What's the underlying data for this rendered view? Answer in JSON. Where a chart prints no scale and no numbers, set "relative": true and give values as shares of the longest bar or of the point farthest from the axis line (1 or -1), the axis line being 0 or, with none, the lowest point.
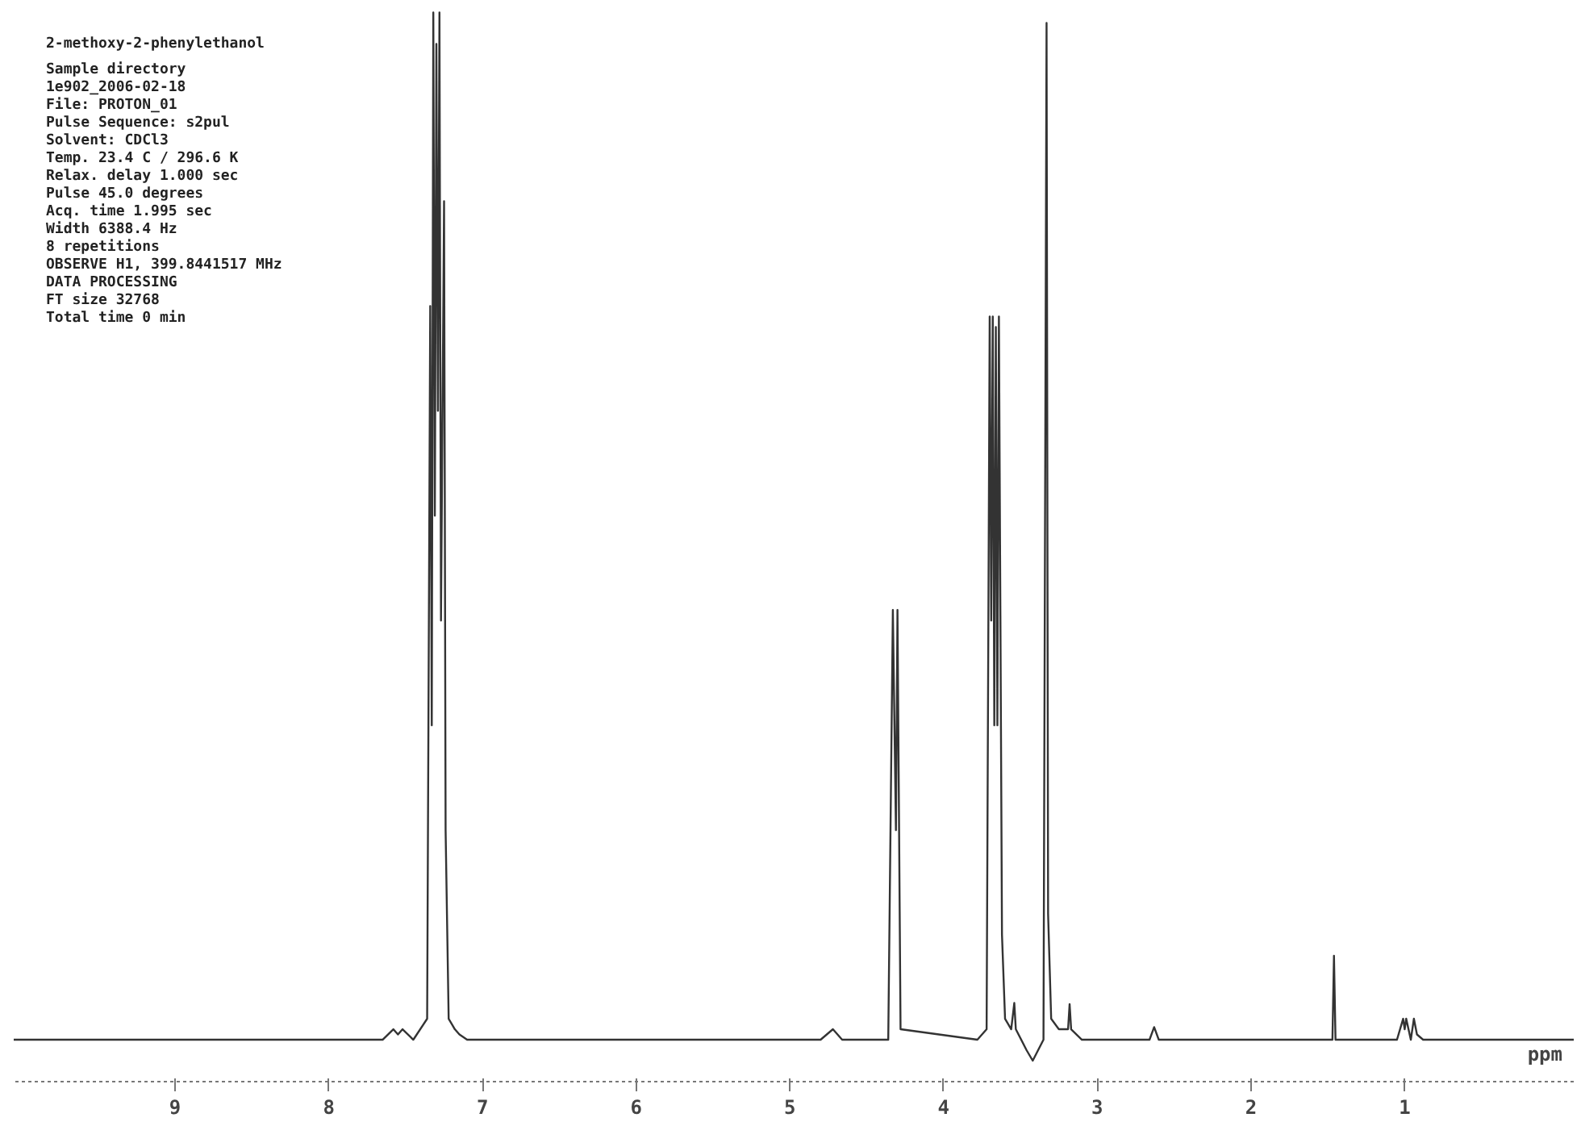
{
  "chart_data": {
    "type": "line",
    "relative": true,
    "title": "2-methoxy-2-phenylethanol",
    "xlabel": "ppm",
    "annotations": [
      "Sample directory",
      "1e902_2006-02-18",
      "File: PROTON_01",
      "Pulse Sequence: s2pul",
      "Solvent: CDCl3",
      "Temp. 23.4 C / 296.6 K",
      "Relax. delay 1.000 sec",
      "Pulse 45.0 degrees",
      "Acq. time 1.995 sec",
      "Width 6388.4 Hz",
      "8 repetitions",
      "OBSERVE  H1, 399.8441517 MHz",
      "DATA PROCESSING",
      "FT size 32768",
      "Total time 0 min"
    ],
    "xlim": [
      10.05,
      -0.1
    ],
    "xticks": [
      9,
      8,
      7,
      6,
      5,
      4,
      3,
      2,
      1
    ],
    "grid": false,
    "marker": "none",
    "line_style": "solid",
    "series": [
      {
        "color": "#333333",
        "x": [
          10.05,
          7.65,
          7.58,
          7.55,
          7.52,
          7.45,
          7.36,
          7.34,
          7.33,
          7.32,
          7.31,
          7.3,
          7.29,
          7.28,
          7.27,
          7.25,
          7.24,
          7.22,
          7.18,
          7.15,
          7.1,
          4.8,
          4.72,
          4.66,
          4.36,
          4.33,
          4.31,
          4.3,
          4.28,
          3.78,
          3.72,
          3.7,
          3.69,
          3.68,
          3.67,
          3.66,
          3.65,
          3.64,
          3.62,
          3.6,
          3.56,
          3.54,
          3.53,
          3.46,
          3.42,
          3.35,
          3.33,
          3.32,
          3.3,
          3.25,
          3.19,
          3.18,
          3.17,
          3.1,
          2.66,
          2.63,
          2.6,
          1.47,
          1.46,
          1.45,
          1.05,
          1.01,
          1.0,
          0.99,
          0.96,
          0.94,
          0.92,
          0.88,
          -0.1
        ],
        "values": [
          0.02,
          0.02,
          0.03,
          0.025,
          0.03,
          0.02,
          0.04,
          0.72,
          0.32,
          1.0,
          0.52,
          0.97,
          0.62,
          1.0,
          0.42,
          0.82,
          0.22,
          0.04,
          0.03,
          0.025,
          0.02,
          0.02,
          0.03,
          0.02,
          0.02,
          0.43,
          0.22,
          0.43,
          0.03,
          0.02,
          0.03,
          0.71,
          0.42,
          0.71,
          0.32,
          0.7,
          0.32,
          0.71,
          0.12,
          0.04,
          0.03,
          0.055,
          0.03,
          0.01,
          0,
          0.02,
          0.99,
          0.14,
          0.04,
          0.03,
          0.03,
          0.054,
          0.03,
          0.02,
          0.02,
          0.032,
          0.02,
          0.02,
          0.1,
          0.02,
          0.02,
          0.04,
          0.03,
          0.04,
          0.02,
          0.04,
          0.025,
          0.02,
          0.02
        ]
      }
    ]
  }
}
